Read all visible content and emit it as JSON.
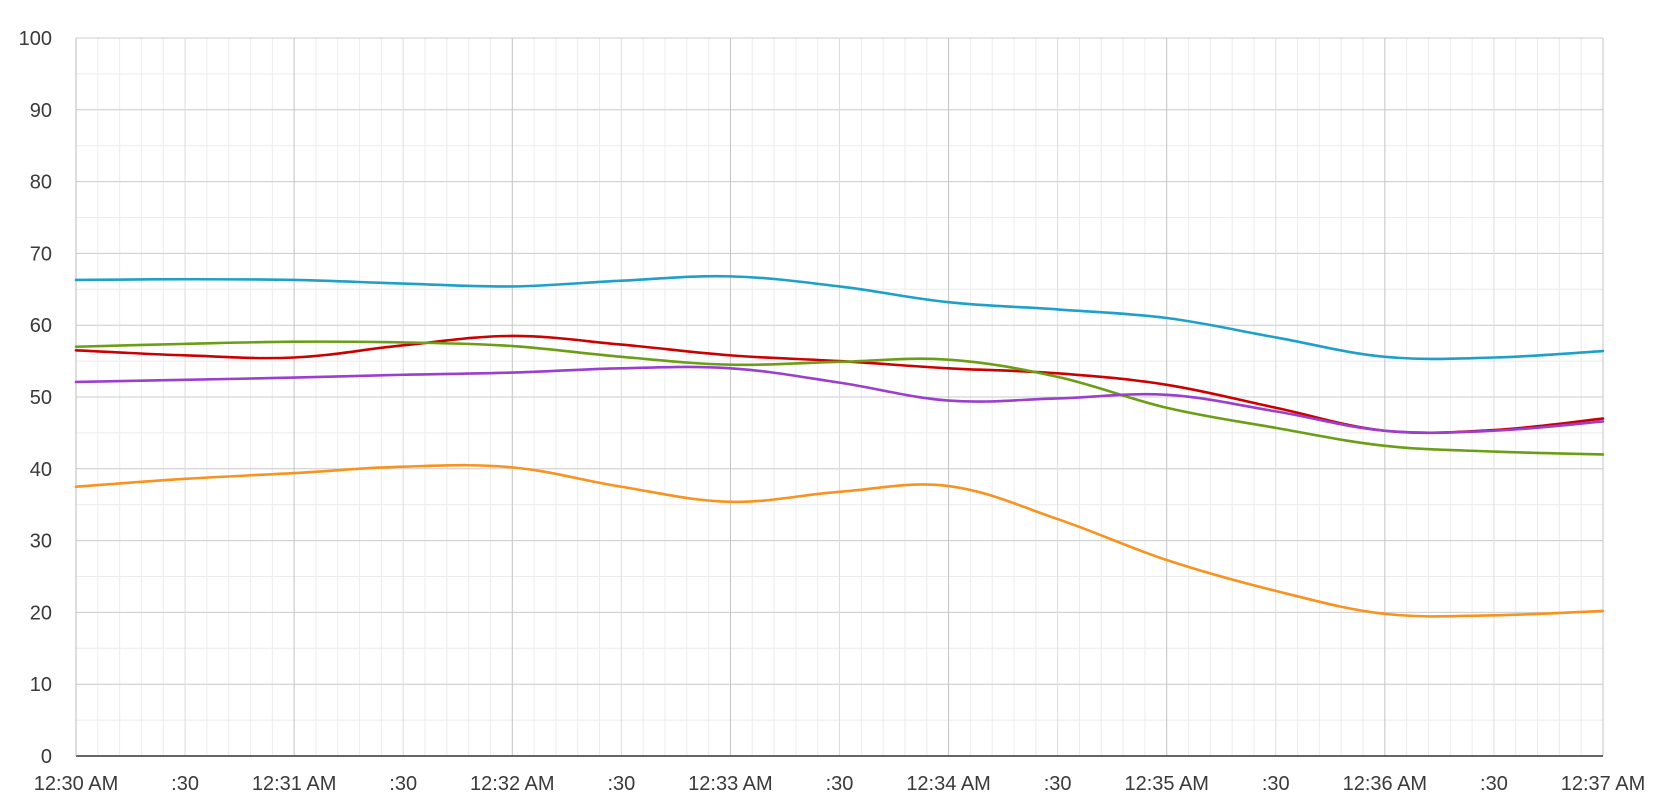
{
  "chart_data": {
    "type": "line",
    "title": "",
    "xlabel": "",
    "ylabel": "",
    "ylim": [
      0,
      100
    ],
    "y_ticks": [
      0,
      10,
      20,
      30,
      40,
      50,
      60,
      70,
      80,
      90,
      100
    ],
    "x_ticks": [
      {
        "t": 0,
        "label": "12:30 AM"
      },
      {
        "t": 30,
        "label": ":30"
      },
      {
        "t": 60,
        "label": "12:31 AM"
      },
      {
        "t": 90,
        "label": ":30"
      },
      {
        "t": 120,
        "label": "12:32 AM"
      },
      {
        "t": 150,
        "label": ":30"
      },
      {
        "t": 180,
        "label": "12:33 AM"
      },
      {
        "t": 210,
        "label": ":30"
      },
      {
        "t": 240,
        "label": "12:34 AM"
      },
      {
        "t": 270,
        "label": ":30"
      },
      {
        "t": 300,
        "label": "12:35 AM"
      },
      {
        "t": 330,
        "label": ":30"
      },
      {
        "t": 360,
        "label": "12:36 AM"
      },
      {
        "t": 390,
        "label": ":30"
      },
      {
        "t": 420,
        "label": "12:37 AM"
      }
    ],
    "xlim": [
      0,
      420
    ],
    "grid": true,
    "legend": "none",
    "series": [
      {
        "color": "#1ea0c8",
        "points": [
          [
            0,
            66.3
          ],
          [
            30,
            66.4
          ],
          [
            60,
            66.3
          ],
          [
            90,
            65.8
          ],
          [
            120,
            65.4
          ],
          [
            150,
            66.2
          ],
          [
            180,
            66.8
          ],
          [
            210,
            65.4
          ],
          [
            240,
            63.2
          ],
          [
            270,
            62.2
          ],
          [
            300,
            61.0
          ],
          [
            330,
            58.3
          ],
          [
            360,
            55.6
          ],
          [
            390,
            55.5
          ],
          [
            420,
            56.4
          ]
        ]
      },
      {
        "color": "#cc0000",
        "points": [
          [
            0,
            56.5
          ],
          [
            30,
            55.8
          ],
          [
            60,
            55.5
          ],
          [
            90,
            57.2
          ],
          [
            120,
            58.5
          ],
          [
            150,
            57.3
          ],
          [
            180,
            55.8
          ],
          [
            210,
            55.0
          ],
          [
            240,
            54.0
          ],
          [
            270,
            53.3
          ],
          [
            300,
            51.7
          ],
          [
            330,
            48.5
          ],
          [
            360,
            45.3
          ],
          [
            390,
            45.4
          ],
          [
            420,
            47.0
          ]
        ]
      },
      {
        "color": "#6a9e14",
        "points": [
          [
            0,
            57.0
          ],
          [
            30,
            57.4
          ],
          [
            60,
            57.7
          ],
          [
            90,
            57.6
          ],
          [
            120,
            57.1
          ],
          [
            150,
            55.6
          ],
          [
            180,
            54.5
          ],
          [
            210,
            54.9
          ],
          [
            240,
            55.2
          ],
          [
            270,
            52.8
          ],
          [
            300,
            48.5
          ],
          [
            330,
            45.7
          ],
          [
            360,
            43.2
          ],
          [
            390,
            42.4
          ],
          [
            420,
            42.0
          ]
        ]
      },
      {
        "color": "#9b3fcf",
        "points": [
          [
            0,
            52.1
          ],
          [
            30,
            52.4
          ],
          [
            60,
            52.7
          ],
          [
            90,
            53.1
          ],
          [
            120,
            53.4
          ],
          [
            150,
            54.0
          ],
          [
            180,
            54.0
          ],
          [
            210,
            52.0
          ],
          [
            240,
            49.5
          ],
          [
            270,
            49.8
          ],
          [
            300,
            50.3
          ],
          [
            330,
            48.0
          ],
          [
            360,
            45.3
          ],
          [
            390,
            45.3
          ],
          [
            420,
            46.6
          ]
        ]
      },
      {
        "color": "#f7931e",
        "points": [
          [
            0,
            37.5
          ],
          [
            30,
            38.6
          ],
          [
            60,
            39.4
          ],
          [
            90,
            40.3
          ],
          [
            120,
            40.2
          ],
          [
            150,
            37.5
          ],
          [
            180,
            35.4
          ],
          [
            210,
            36.8
          ],
          [
            240,
            37.6
          ],
          [
            270,
            33.0
          ],
          [
            300,
            27.3
          ],
          [
            330,
            23.0
          ],
          [
            360,
            19.8
          ],
          [
            390,
            19.6
          ],
          [
            420,
            20.2
          ]
        ]
      }
    ]
  }
}
